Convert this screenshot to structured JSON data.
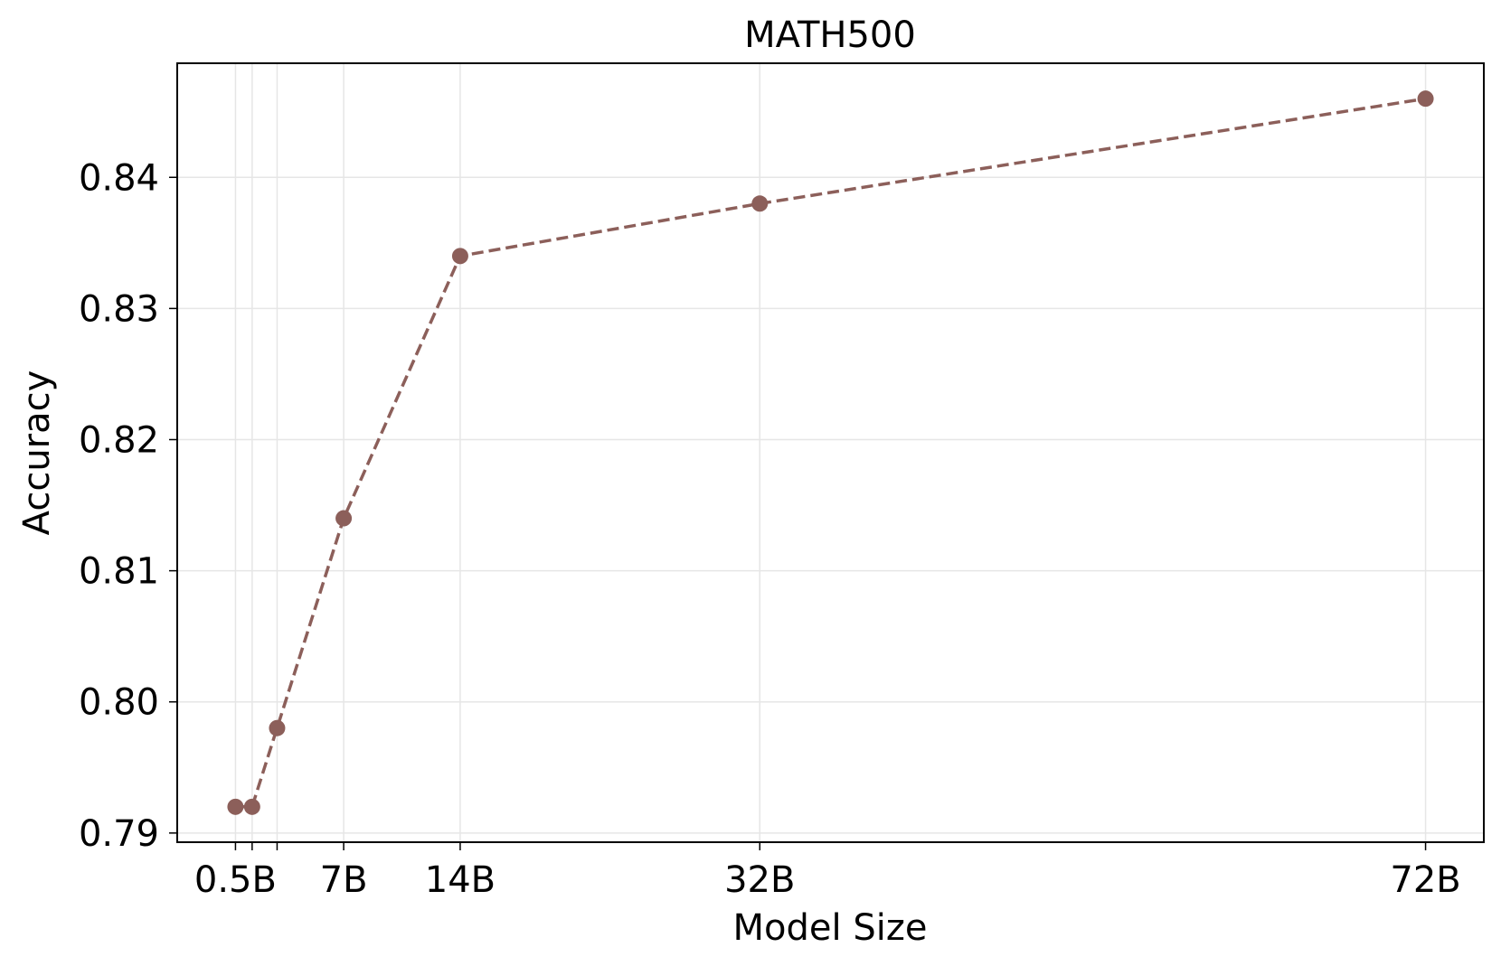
{
  "chart_data": {
    "type": "line",
    "title": "MATH500",
    "xlabel": "Model Size",
    "ylabel": "Accuracy",
    "x": [
      0.5,
      1.5,
      3,
      7,
      14,
      32,
      72
    ],
    "x_tick_values": [
      0.5,
      7,
      14,
      32,
      72
    ],
    "x_tick_labels": [
      "0.5B",
      "7B",
      "14B",
      "32B",
      "72B"
    ],
    "x_grid_values": [
      0.5,
      1.5,
      3,
      7,
      14,
      32,
      72
    ],
    "y_ticks": [
      0.79,
      0.8,
      0.81,
      0.82,
      0.83,
      0.84
    ],
    "y_tick_labels": [
      "0.79",
      "0.80",
      "0.81",
      "0.82",
      "0.83",
      "0.84"
    ],
    "xlim": [
      -3,
      75.5
    ],
    "ylim": [
      0.7893,
      0.8487
    ],
    "grid": true,
    "series": [
      {
        "values": [
          0.792,
          0.792,
          0.798,
          0.814,
          0.834,
          0.838,
          0.846
        ],
        "color": "#8c5f5a",
        "line_style": "dashed",
        "marker": "circle"
      }
    ]
  }
}
